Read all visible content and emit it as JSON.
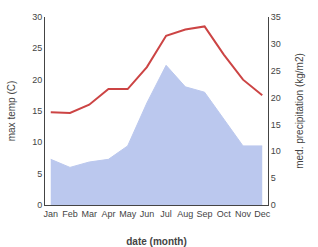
{
  "chart_data": {
    "type": "line",
    "x_label": "date (month)",
    "y_label": "max temp (C)",
    "y2_label": "med. precipitation (kg/m2)",
    "categories": [
      "Jan",
      "Feb",
      "Mar",
      "Apr",
      "May",
      "Jun",
      "Jul",
      "Aug",
      "Sep",
      "Oct",
      "Nov",
      "Dec"
    ],
    "series": [
      {
        "type": "area",
        "color": "#bbc8ee",
        "axis": "y2",
        "values": [
          8.5,
          7.0,
          8.0,
          8.5,
          11.0,
          19.0,
          26.0,
          22.0,
          21.0,
          16.0,
          11.0,
          11.0
        ]
      },
      {
        "type": "line",
        "color": "#cc4444",
        "values": [
          14.8,
          14.7,
          16.0,
          18.5,
          18.5,
          22.0,
          27.0,
          28.0,
          28.5,
          24.0,
          20.0,
          17.5
        ]
      }
    ],
    "ylim": [
      0,
      30
    ],
    "yticks": [
      0,
      5,
      10,
      15,
      20,
      25,
      30
    ],
    "y2lim": [
      0,
      35
    ],
    "y2ticks": [
      0,
      5,
      10,
      15,
      20,
      25,
      30,
      35
    ],
    "grid": false
  }
}
